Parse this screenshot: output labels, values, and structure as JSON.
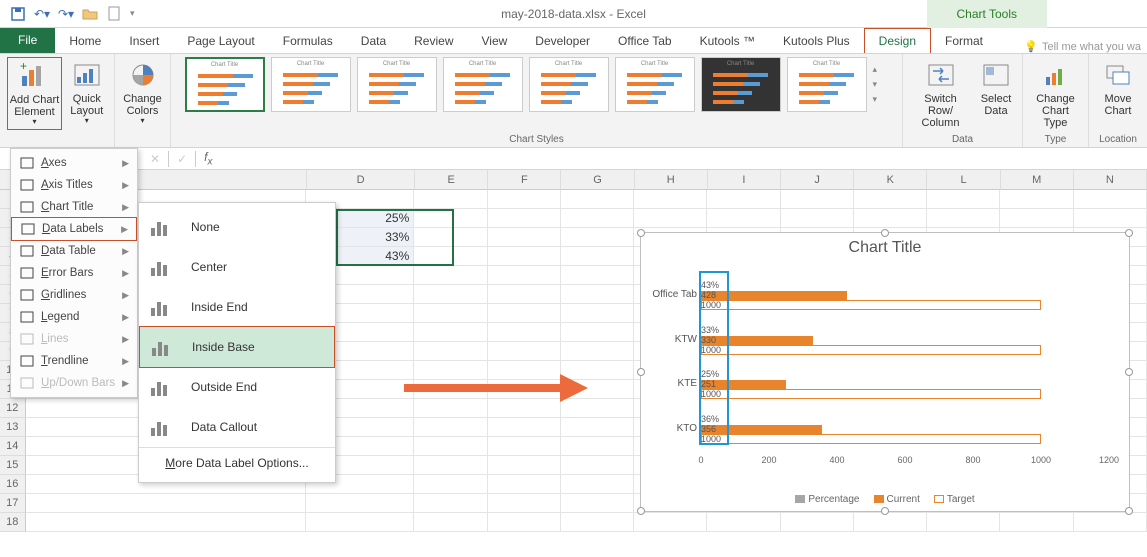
{
  "app": {
    "title": "may-2018-data.xlsx - Excel",
    "context_tab": "Chart Tools"
  },
  "qat": [
    "save",
    "undo",
    "redo",
    "open",
    "new"
  ],
  "tabs": [
    "File",
    "Home",
    "Insert",
    "Page Layout",
    "Formulas",
    "Data",
    "Review",
    "View",
    "Developer",
    "Office Tab",
    "Kutools ™",
    "Kutools Plus",
    "Design",
    "Format"
  ],
  "tellme": "Tell me what you wa",
  "ribbon": {
    "add_chart_element": "Add Chart\nElement",
    "quick_layout": "Quick\nLayout",
    "change_colors": "Change\nColors",
    "chart_styles_label": "Chart Styles",
    "switch": "Switch Row/\nColumn",
    "select_data": "Select\nData",
    "data_label": "Data",
    "change_type": "Change\nChart Type",
    "type_label": "Type",
    "move_chart": "Move\nChart",
    "location_label": "Location"
  },
  "dd1": [
    {
      "label": "Axes",
      "icon": "axes",
      "sub": true
    },
    {
      "label": "Axis Titles",
      "icon": "axtitle",
      "sub": true
    },
    {
      "label": "Chart Title",
      "icon": "ctitle",
      "sub": true
    },
    {
      "label": "Data Labels",
      "icon": "dlabel",
      "sub": true,
      "hl": true
    },
    {
      "label": "Data Table",
      "icon": "dtable",
      "sub": true
    },
    {
      "label": "Error Bars",
      "icon": "ebar",
      "sub": true
    },
    {
      "label": "Gridlines",
      "icon": "grid",
      "sub": true
    },
    {
      "label": "Legend",
      "icon": "legend",
      "sub": true
    },
    {
      "label": "Lines",
      "icon": "lines",
      "sub": true,
      "disabled": true
    },
    {
      "label": "Trendline",
      "icon": "trend",
      "sub": true
    },
    {
      "label": "Up/Down Bars",
      "icon": "updown",
      "sub": true,
      "disabled": true
    }
  ],
  "dd2": [
    {
      "label": "None"
    },
    {
      "label": "Center"
    },
    {
      "label": "Inside End"
    },
    {
      "label": "Inside Base",
      "sel": true
    },
    {
      "label": "Outside End"
    },
    {
      "label": "Data Callout"
    }
  ],
  "dd2_more": "More Data Label Options...",
  "columns": [
    "D",
    "E",
    "F",
    "G",
    "H",
    "I",
    "J",
    "K",
    "L",
    "M",
    "N"
  ],
  "col_widths": {
    "rowhdr": 28,
    "D": 118,
    "std": 80
  },
  "rows_visible": [
    1,
    2,
    3,
    4,
    5,
    6,
    7,
    8,
    9,
    10,
    11,
    12,
    13,
    14,
    15,
    16,
    17,
    18
  ],
  "cellsD": {
    "2": "25%",
    "3": "33%",
    "4": "43%"
  },
  "selection": {
    "col": "D",
    "r1": 2,
    "r2": 4
  },
  "chart": {
    "title": "Chart Title",
    "categories": [
      "Office Tab",
      "KTW",
      "KTE",
      "KTO"
    ],
    "series": {
      "target": [
        1000,
        1000,
        1000,
        1000
      ],
      "current": [
        428,
        330,
        251,
        356
      ],
      "percentage": [
        43,
        33,
        25,
        36
      ]
    },
    "xmax": 1200,
    "xtick_step": 200,
    "colors": {
      "current": "#e8842b",
      "target_border": "#e8842b",
      "percentage": "#a6a6a6",
      "label_box": "#2196d6"
    },
    "legend": [
      "Percentage",
      "Current",
      "Target"
    ],
    "datalabels_on": true
  }
}
